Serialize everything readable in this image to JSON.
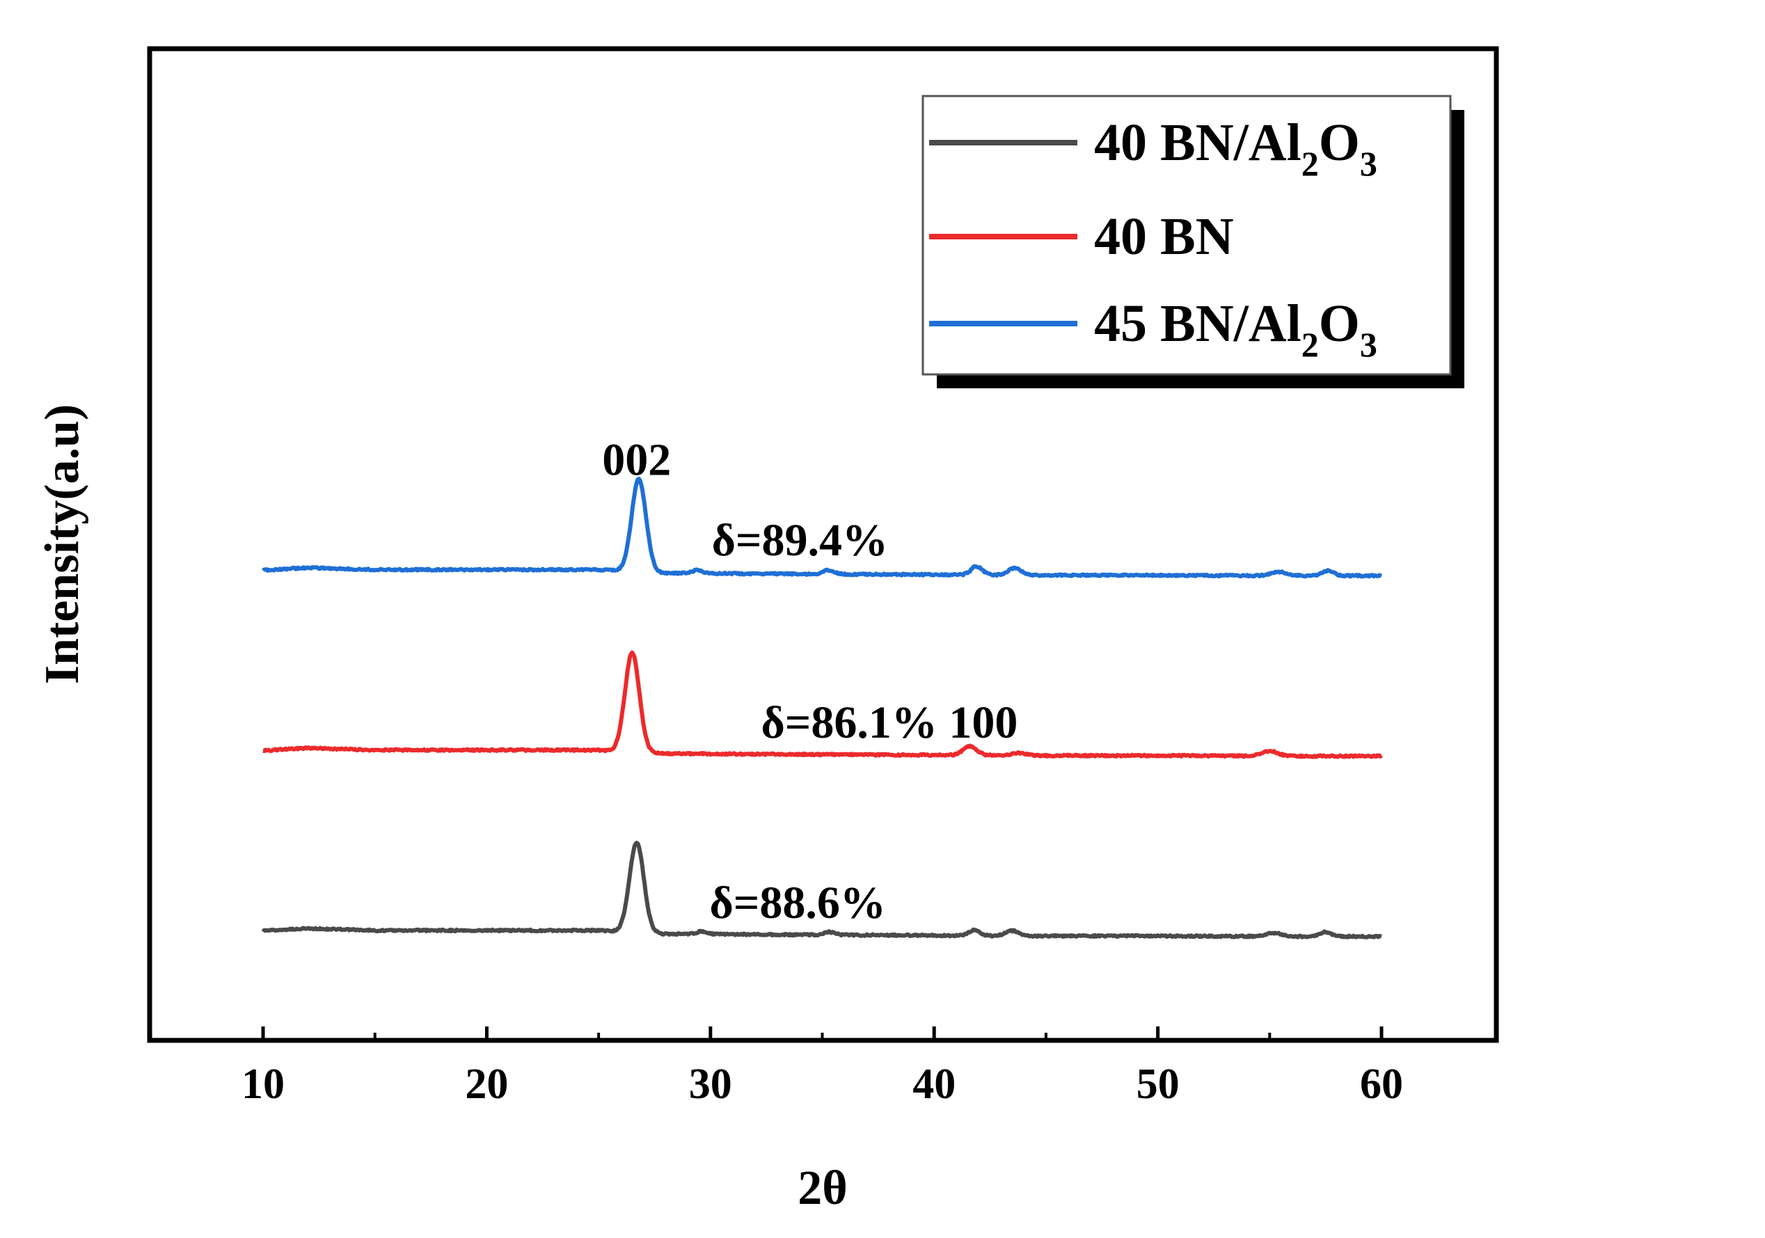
{
  "chart_data": {
    "type": "line",
    "title": "",
    "xlabel": "2θ",
    "ylabel": "Intensity(a.u)",
    "xlim": [
      5,
      65
    ],
    "xticks": [
      10,
      20,
      30,
      40,
      50,
      60
    ],
    "xtick_labels": [
      "10",
      "20",
      "30",
      "40",
      "50",
      "60"
    ],
    "grid": false,
    "legend_position": "top-right",
    "series": [
      {
        "name": "40 BN/Al2O3",
        "legend": {
          "prefix": "40 BN/Al",
          "sub1": "2",
          "mid": "O",
          "sub2": "3"
        },
        "color": "#4a4a4a",
        "baseline": [
          [
            10,
            10
          ],
          [
            12,
            15
          ],
          [
            15,
            11
          ],
          [
            20,
            11
          ],
          [
            25,
            11
          ],
          [
            28,
            4
          ],
          [
            32,
            3
          ],
          [
            40,
            1
          ],
          [
            45,
            0
          ],
          [
            50,
            0
          ],
          [
            55,
            -1
          ],
          [
            60,
            -1
          ]
        ],
        "peaks": [
          [
            26.7,
            180,
            0.32
          ],
          [
            29.6,
            5,
            0.25
          ],
          [
            35.3,
            6,
            0.25
          ],
          [
            41.8,
            11,
            0.25
          ],
          [
            43.5,
            10,
            0.3
          ],
          [
            55.2,
            7,
            0.35
          ],
          [
            57.5,
            9,
            0.25
          ]
        ],
        "offset": 0
      },
      {
        "name": "40 BN",
        "legend": {
          "prefix": "40 BN",
          "sub1": "",
          "mid": "",
          "sub2": ""
        },
        "color": "#ec2a2c",
        "baseline": [
          [
            10,
            10
          ],
          [
            12,
            15
          ],
          [
            15,
            11
          ],
          [
            20,
            11
          ],
          [
            25,
            11
          ],
          [
            28,
            4
          ],
          [
            32,
            3
          ],
          [
            40,
            1
          ],
          [
            45,
            0
          ],
          [
            50,
            0
          ],
          [
            55,
            -1
          ],
          [
            60,
            -1
          ]
        ],
        "peaks": [
          [
            26.5,
            198,
            0.32
          ],
          [
            41.6,
            18,
            0.3
          ],
          [
            43.8,
            5,
            0.3
          ],
          [
            55.0,
            10,
            0.35
          ]
        ],
        "offset": 360
      },
      {
        "name": "45 BN/Al2O3",
        "legend": {
          "prefix": "45 BN/Al",
          "sub1": "2",
          "mid": "O",
          "sub2": "3"
        },
        "color": "#1f6fd6",
        "baseline": [
          [
            10,
            10
          ],
          [
            12,
            15
          ],
          [
            15,
            11
          ],
          [
            20,
            11
          ],
          [
            25,
            11
          ],
          [
            28,
            4
          ],
          [
            32,
            3
          ],
          [
            40,
            1
          ],
          [
            45,
            0
          ],
          [
            50,
            0
          ],
          [
            55,
            -1
          ],
          [
            60,
            -1
          ]
        ],
        "peaks": [
          [
            26.8,
            185,
            0.32
          ],
          [
            29.4,
            6,
            0.25
          ],
          [
            35.3,
            8,
            0.25
          ],
          [
            41.9,
            17,
            0.25
          ],
          [
            43.6,
            14,
            0.3
          ],
          [
            55.4,
            8,
            0.35
          ],
          [
            57.6,
            10,
            0.25
          ]
        ],
        "offset": 720
      }
    ],
    "annotations": [
      {
        "text": "002",
        "x": 26.7,
        "y": 920
      },
      {
        "text": "δ=89.4%",
        "x": 34.0,
        "y": 760
      },
      {
        "text": "δ=86.1% 100",
        "x": 38.0,
        "y": 396
      },
      {
        "text": "δ=88.6%",
        "x": 33.9,
        "y": 36
      }
    ]
  }
}
